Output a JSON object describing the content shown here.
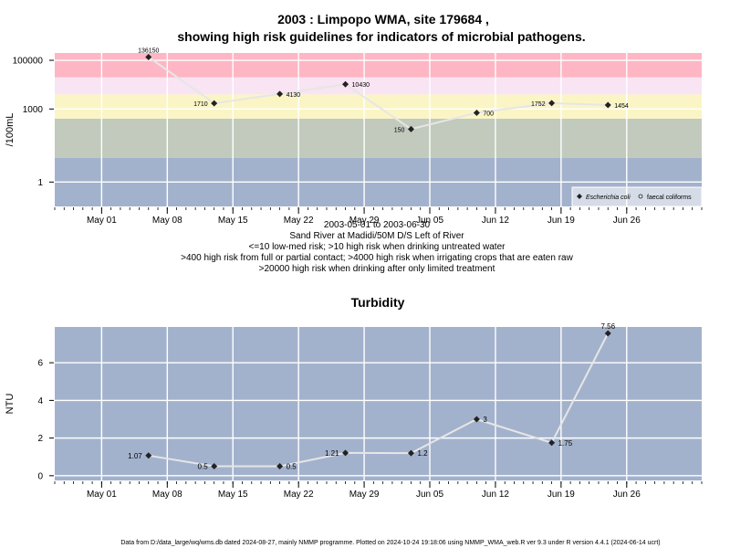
{
  "page": {
    "title_line1": "2003 : Limpopo WMA, site 179684 ,",
    "title_line2": "showing high risk guidelines for indicators of microbial pathogens.",
    "date_range": "2003-05-01 to 2003-06-30",
    "site_desc": "Sand River at Madidi/50M D/S Left of River",
    "risk_line1": "<=10 low-med risk; >10 high risk when drinking untreated water",
    "risk_line2": ">400 high risk from full or partial contact; >4000 high risk when irrigating crops that are eaten raw",
    "risk_line3": ">20000 high risk when drinking after only limited treatment",
    "footer": "Data from D:/data_large/wq/wms.db dated 2024-08-27, mainly NMMP programme. Plotted on 2024-10-24 19:18:06 using NMMP_WMA_web.R ver 9.3 under R version 4.4.1 (2024-06-14 ucrt)"
  },
  "chart_data": [
    {
      "type": "line",
      "ylabel": "/100mL",
      "xlabel": "",
      "log_scale_y": true,
      "ylim": [
        0.1,
        200000
      ],
      "xlim": [
        "2003-04-26",
        "2003-07-04"
      ],
      "x_ticks": [
        {
          "date": "2003-05-01",
          "label": "May 01"
        },
        {
          "date": "2003-05-08",
          "label": "May 08"
        },
        {
          "date": "2003-05-15",
          "label": "May 15"
        },
        {
          "date": "2003-05-22",
          "label": "May 22"
        },
        {
          "date": "2003-05-29",
          "label": "May 29"
        },
        {
          "date": "2003-06-05",
          "label": "Jun 05"
        },
        {
          "date": "2003-06-12",
          "label": "Jun 12"
        },
        {
          "date": "2003-06-19",
          "label": "Jun 19"
        },
        {
          "date": "2003-06-26",
          "label": "Jun 26"
        }
      ],
      "y_ticks": [
        {
          "value": 1,
          "label": "1"
        },
        {
          "value": 1000,
          "label": "1000"
        },
        {
          "value": 100000,
          "label": "100000"
        }
      ],
      "bands": [
        {
          "from": 0.1,
          "to": 10,
          "color": "#a3b2cc"
        },
        {
          "from": 10,
          "to": 400,
          "color": "#c1cabd"
        },
        {
          "from": 400,
          "to": 4000,
          "color": "#fbf5c6"
        },
        {
          "from": 4000,
          "to": 20000,
          "color": "#f9e4f3"
        },
        {
          "from": 20000,
          "to": 200000,
          "color": "#feb6c4"
        }
      ],
      "grid": true,
      "legend_position": "bottom-right",
      "legend": [
        {
          "marker": "filled-diamond",
          "label": "Escherichia coli",
          "italic": true
        },
        {
          "marker": "open-circle",
          "label": "faecal coliforms",
          "italic": false
        }
      ],
      "series": [
        {
          "name": "Escherichia coli",
          "color": "#222222",
          "line_color": "#e6e6e6",
          "points": [
            {
              "x": "2003-05-06",
              "y": 136150,
              "label": "136150",
              "label_pos": "top"
            },
            {
              "x": "2003-05-13",
              "y": 1710,
              "label": "1710",
              "label_pos": "left"
            },
            {
              "x": "2003-05-20",
              "y": 4130,
              "label": "4130",
              "label_pos": "right"
            },
            {
              "x": "2003-05-27",
              "y": 10430,
              "label": "10430",
              "label_pos": "right"
            },
            {
              "x": "2003-06-03",
              "y": 150,
              "label": "150",
              "label_pos": "left"
            },
            {
              "x": "2003-06-10",
              "y": 700,
              "label": "700",
              "label_pos": "right"
            },
            {
              "x": "2003-06-18",
              "y": 1752,
              "label": "1752",
              "label_pos": "left"
            },
            {
              "x": "2003-06-24",
              "y": 1454,
              "label": "1454",
              "label_pos": "right"
            }
          ]
        }
      ]
    },
    {
      "type": "line",
      "title": "Turbidity",
      "ylabel": "NTU",
      "xlabel": "",
      "ylim": [
        -0.25,
        7.9
      ],
      "xlim": [
        "2003-04-26",
        "2003-07-04"
      ],
      "x_ticks": [
        {
          "date": "2003-05-01",
          "label": "May 01"
        },
        {
          "date": "2003-05-08",
          "label": "May 08"
        },
        {
          "date": "2003-05-15",
          "label": "May 15"
        },
        {
          "date": "2003-05-22",
          "label": "May 22"
        },
        {
          "date": "2003-05-29",
          "label": "May 29"
        },
        {
          "date": "2003-06-05",
          "label": "Jun 05"
        },
        {
          "date": "2003-06-12",
          "label": "Jun 12"
        },
        {
          "date": "2003-06-19",
          "label": "Jun 19"
        },
        {
          "date": "2003-06-26",
          "label": "Jun 26"
        }
      ],
      "y_ticks": [
        {
          "value": 0,
          "label": "0"
        },
        {
          "value": 2,
          "label": "2"
        },
        {
          "value": 4,
          "label": "4"
        },
        {
          "value": 6,
          "label": "6"
        }
      ],
      "background": "#a3b2cc",
      "grid": true,
      "series": [
        {
          "color": "#222222",
          "line_color": "#e6e6e6",
          "points": [
            {
              "x": "2003-05-06",
              "y": 1.07,
              "label": "1.07",
              "label_pos": "left"
            },
            {
              "x": "2003-05-13",
              "y": 0.5,
              "label": "0.5",
              "label_pos": "left"
            },
            {
              "x": "2003-05-20",
              "y": 0.5,
              "label": "0.5",
              "label_pos": "right"
            },
            {
              "x": "2003-05-27",
              "y": 1.21,
              "label": "1.21",
              "label_pos": "left"
            },
            {
              "x": "2003-06-03",
              "y": 1.2,
              "label": "1.2",
              "label_pos": "right"
            },
            {
              "x": "2003-06-10",
              "y": 3,
              "label": "3",
              "label_pos": "right"
            },
            {
              "x": "2003-06-18",
              "y": 1.75,
              "label": "1.75",
              "label_pos": "right"
            },
            {
              "x": "2003-06-24",
              "y": 7.56,
              "label": "7.56",
              "label_pos": "top"
            }
          ]
        }
      ]
    }
  ]
}
